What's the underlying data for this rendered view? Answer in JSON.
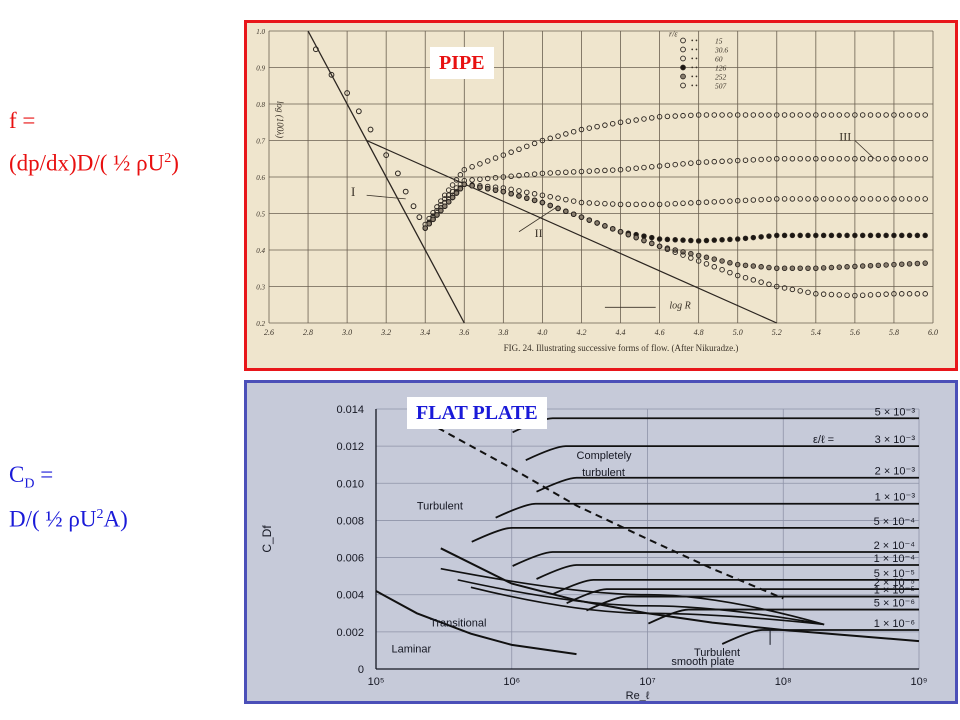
{
  "equations": {
    "pipe_line1": "f =",
    "pipe_line2_a": "(dp/dx)D/( ½ ρU",
    "pipe_line2_sup": "2",
    "pipe_line2_b": ")",
    "plate_line1_a": "C",
    "plate_line1_sub": "D",
    "plate_line1_b": " =",
    "plate_line2_a": "D/( ½ ρU",
    "plate_line2_sup": "2",
    "plate_line2_b": "A)"
  },
  "colors": {
    "red": "#e81010",
    "blue": "#1a1ad8",
    "pipe_bg": "#efe5cd",
    "plate_bg": "#c6cad9"
  },
  "chart_data": [
    {
      "type": "scatter",
      "tag": "PIPE",
      "ylabel": "log (100λ)",
      "xlabel": "log R",
      "caption": "FIG. 24. Illustrating successive forms of flow. (After Nikuradze.)",
      "xlim": [
        2.6,
        6.0
      ],
      "ylim": [
        0.2,
        1.0
      ],
      "x_ticks": [
        "2.6",
        "2.8",
        "3.0",
        "3.2",
        "3.4",
        "3.6",
        "3.8",
        "4.0",
        "4.2",
        "4.4",
        "4.6",
        "4.8",
        "5.0",
        "5.2",
        "5.4",
        "5.6",
        "5.8",
        "6.0"
      ],
      "y_ticks": [
        "0.2",
        "0.3",
        "0.4",
        "0.5",
        "0.6",
        "0.7",
        "0.8",
        "0.9",
        "1.0"
      ],
      "legend_header": "r/ε",
      "legend": [
        "15",
        "30.6",
        "60",
        "126",
        "252",
        "507"
      ],
      "region_labels": [
        "I",
        "II",
        "III"
      ],
      "laminar_line": {
        "x": [
          2.8,
          3.6
        ],
        "y": [
          1.0,
          0.2
        ]
      },
      "blasius_line": {
        "x": [
          3.1,
          5.2
        ],
        "y": [
          0.7,
          0.2
        ]
      },
      "series": [
        {
          "name": "15",
          "x": [
            3.4,
            3.5,
            3.6,
            3.8,
            4.0,
            4.2,
            4.4,
            4.6,
            4.8,
            5.0,
            5.2,
            5.4,
            5.6,
            5.8,
            6.0
          ],
          "y": [
            0.47,
            0.55,
            0.62,
            0.66,
            0.7,
            0.73,
            0.75,
            0.765,
            0.77,
            0.77,
            0.77,
            0.77,
            0.77,
            0.77,
            0.77
          ]
        },
        {
          "name": "30.6",
          "x": [
            3.4,
            3.5,
            3.6,
            3.8,
            4.0,
            4.2,
            4.4,
            4.6,
            4.8,
            5.0,
            5.2,
            5.4,
            5.6,
            5.8,
            6.0
          ],
          "y": [
            0.46,
            0.54,
            0.59,
            0.6,
            0.61,
            0.615,
            0.62,
            0.63,
            0.64,
            0.645,
            0.65,
            0.65,
            0.65,
            0.65,
            0.65
          ]
        },
        {
          "name": "60",
          "x": [
            3.4,
            3.5,
            3.6,
            3.8,
            4.0,
            4.2,
            4.4,
            4.6,
            4.8,
            5.0,
            5.2,
            5.4,
            5.6,
            5.8,
            6.0
          ],
          "y": [
            0.46,
            0.53,
            0.58,
            0.57,
            0.55,
            0.53,
            0.525,
            0.525,
            0.53,
            0.535,
            0.54,
            0.54,
            0.54,
            0.54,
            0.54
          ]
        },
        {
          "name": "126",
          "x": [
            3.4,
            3.5,
            3.6,
            3.8,
            4.0,
            4.2,
            4.4,
            4.6,
            4.8,
            5.0,
            5.2,
            5.4,
            5.6,
            5.8,
            6.0
          ],
          "y": [
            0.46,
            0.52,
            0.58,
            0.56,
            0.53,
            0.49,
            0.45,
            0.43,
            0.425,
            0.43,
            0.44,
            0.44,
            0.44,
            0.44,
            0.44
          ]
        },
        {
          "name": "252",
          "x": [
            3.4,
            3.5,
            3.6,
            3.8,
            4.0,
            4.2,
            4.4,
            4.6,
            4.8,
            5.0,
            5.2,
            5.4,
            5.6,
            5.8,
            6.0
          ],
          "y": [
            0.46,
            0.52,
            0.58,
            0.56,
            0.53,
            0.49,
            0.45,
            0.41,
            0.385,
            0.36,
            0.35,
            0.35,
            0.355,
            0.36,
            0.365
          ]
        },
        {
          "name": "507",
          "x": [
            3.4,
            3.5,
            3.6,
            3.8,
            4.0,
            4.2,
            4.4,
            4.6,
            4.8,
            5.0,
            5.2,
            5.4,
            5.6,
            5.8,
            6.0
          ],
          "y": [
            0.46,
            0.52,
            0.58,
            0.56,
            0.53,
            0.49,
            0.45,
            0.41,
            0.37,
            0.33,
            0.3,
            0.28,
            0.275,
            0.28,
            0.28
          ]
        }
      ]
    },
    {
      "type": "line",
      "tag": "FLAT PLATE",
      "ylabel": "C_Df",
      "xlabel": "Re_ℓ",
      "x_scale": "log",
      "xlim": [
        100000,
        1000000000
      ],
      "ylim": [
        0,
        0.014
      ],
      "x_ticks": [
        "10⁵",
        "10⁶",
        "10⁷",
        "10⁸",
        "10⁹"
      ],
      "y_ticks": [
        "0",
        "0.002",
        "0.004",
        "0.006",
        "0.008",
        "0.010",
        "0.012",
        "0.014"
      ],
      "annotations": [
        "Completely turbulent",
        "Turbulent",
        "Transitional",
        "Laminar",
        "Turbulent smooth plate"
      ],
      "roughness_header": "ε/ℓ = 3 × 10⁻³",
      "roughness_labels": [
        "5 × 10⁻³",
        "3 × 10⁻³",
        "2 × 10⁻³",
        "1 × 10⁻³",
        "5 × 10⁻⁴",
        "2 × 10⁻⁴",
        "1 × 10⁻⁴",
        "5 × 10⁻⁵",
        "2 × 10⁻⁵",
        "1 × 10⁻⁵",
        "5 × 10⁻⁶",
        "1 × 10⁻⁶"
      ],
      "roughness_levels": [
        0.0135,
        0.012,
        0.0103,
        0.0089,
        0.0076,
        0.0063,
        0.0056,
        0.0048,
        0.0043,
        0.0039,
        0.0032,
        0.0021
      ],
      "curves": [
        {
          "name": "Laminar",
          "x": [
            100000,
            200000,
            500000,
            1000000,
            3000000
          ],
          "y": [
            0.0042,
            0.003,
            0.0019,
            0.0013,
            0.0008
          ]
        },
        {
          "name": "Turbulent smooth plate",
          "x": [
            300000,
            1000000,
            3000000,
            10000000,
            30000000,
            100000000,
            1000000000
          ],
          "y": [
            0.0065,
            0.0046,
            0.0037,
            0.003,
            0.0025,
            0.0021,
            0.0015
          ]
        },
        {
          "name": "Completely turbulent boundary",
          "x": [
            200000,
            1000000,
            3000000,
            10000000,
            30000000,
            100000000
          ],
          "y": [
            0.0136,
            0.0108,
            0.0088,
            0.007,
            0.0054,
            0.0038
          ]
        }
      ]
    }
  ]
}
